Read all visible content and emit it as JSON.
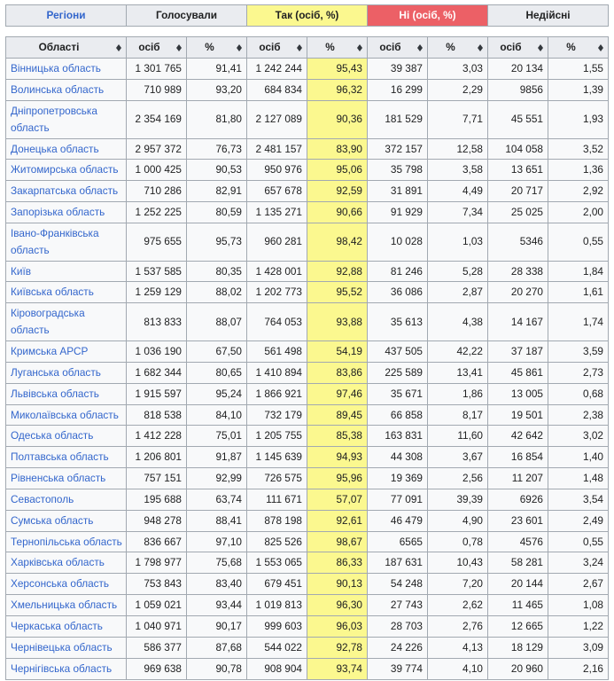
{
  "colors": {
    "header_background": "#eaecf0",
    "row_background": "#f8f9fa",
    "yes_background": "#fbf88f",
    "no_background": "#ec6066",
    "border": "#a2a9b1",
    "link": "#3366cc",
    "text": "#202122"
  },
  "legend": {
    "items": [
      {
        "label": "Регіони",
        "style": "plain",
        "link": true
      },
      {
        "label": "Голосували",
        "style": "plain",
        "link": false
      },
      {
        "label": "Так (осіб, %)",
        "style": "yes",
        "link": false
      },
      {
        "label": "Ні (осіб, %)",
        "style": "no",
        "link": false
      },
      {
        "label": "Недійсні",
        "style": "plain",
        "link": false
      }
    ]
  },
  "table": {
    "columns": [
      {
        "key": "region",
        "label": "Області"
      },
      {
        "key": "voted",
        "label": "осіб"
      },
      {
        "key": "voted_pct",
        "label": "%"
      },
      {
        "key": "yes",
        "label": "осіб"
      },
      {
        "key": "yes_pct",
        "label": "%"
      },
      {
        "key": "no",
        "label": "осіб"
      },
      {
        "key": "no_pct",
        "label": "%"
      },
      {
        "key": "invalid",
        "label": "осіб"
      },
      {
        "key": "invalid_pct",
        "label": "%"
      }
    ],
    "rows": [
      {
        "region": "Вінницька область",
        "voted": "1 301 765",
        "voted_pct": "91,41",
        "yes": "1 242 244",
        "yes_pct": "95,43",
        "no": "39 387",
        "no_pct": "3,03",
        "invalid": "20 134",
        "invalid_pct": "1,55"
      },
      {
        "region": "Волинська область",
        "voted": "710 989",
        "voted_pct": "93,20",
        "yes": "684 834",
        "yes_pct": "96,32",
        "no": "16 299",
        "no_pct": "2,29",
        "invalid": "9856",
        "invalid_pct": "1,39"
      },
      {
        "region": "Дніпропетровська область",
        "voted": "2 354 169",
        "voted_pct": "81,80",
        "yes": "2 127 089",
        "yes_pct": "90,36",
        "no": "181 529",
        "no_pct": "7,71",
        "invalid": "45 551",
        "invalid_pct": "1,93"
      },
      {
        "region": "Донецька область",
        "voted": "2 957 372",
        "voted_pct": "76,73",
        "yes": "2 481 157",
        "yes_pct": "83,90",
        "no": "372 157",
        "no_pct": "12,58",
        "invalid": "104 058",
        "invalid_pct": "3,52"
      },
      {
        "region": "Житомирська область",
        "voted": "1 000 425",
        "voted_pct": "90,53",
        "yes": "950 976",
        "yes_pct": "95,06",
        "no": "35 798",
        "no_pct": "3,58",
        "invalid": "13 651",
        "invalid_pct": "1,36"
      },
      {
        "region": "Закарпатська область",
        "voted": "710 286",
        "voted_pct": "82,91",
        "yes": "657 678",
        "yes_pct": "92,59",
        "no": "31 891",
        "no_pct": "4,49",
        "invalid": "20 717",
        "invalid_pct": "2,92"
      },
      {
        "region": "Запорізька область",
        "voted": "1 252 225",
        "voted_pct": "80,59",
        "yes": "1 135 271",
        "yes_pct": "90,66",
        "no": "91 929",
        "no_pct": "7,34",
        "invalid": "25 025",
        "invalid_pct": "2,00"
      },
      {
        "region": "Івано-Франківська область",
        "voted": "975 655",
        "voted_pct": "95,73",
        "yes": "960 281",
        "yes_pct": "98,42",
        "no": "10 028",
        "no_pct": "1,03",
        "invalid": "5346",
        "invalid_pct": "0,55"
      },
      {
        "region": "Київ",
        "voted": "1 537 585",
        "voted_pct": "80,35",
        "yes": "1 428 001",
        "yes_pct": "92,88",
        "no": "81 246",
        "no_pct": "5,28",
        "invalid": "28 338",
        "invalid_pct": "1,84"
      },
      {
        "region": "Київська область",
        "voted": "1 259 129",
        "voted_pct": "88,02",
        "yes": "1 202 773",
        "yes_pct": "95,52",
        "no": "36 086",
        "no_pct": "2,87",
        "invalid": "20 270",
        "invalid_pct": "1,61"
      },
      {
        "region": "Кіровоградська область",
        "voted": "813 833",
        "voted_pct": "88,07",
        "yes": "764 053",
        "yes_pct": "93,88",
        "no": "35 613",
        "no_pct": "4,38",
        "invalid": "14 167",
        "invalid_pct": "1,74"
      },
      {
        "region": "Кримська АРСР",
        "voted": "1 036 190",
        "voted_pct": "67,50",
        "yes": "561 498",
        "yes_pct": "54,19",
        "no": "437 505",
        "no_pct": "42,22",
        "invalid": "37 187",
        "invalid_pct": "3,59"
      },
      {
        "region": "Луганська область",
        "voted": "1 682 344",
        "voted_pct": "80,65",
        "yes": "1 410 894",
        "yes_pct": "83,86",
        "no": "225 589",
        "no_pct": "13,41",
        "invalid": "45 861",
        "invalid_pct": "2,73"
      },
      {
        "region": "Львівська область",
        "voted": "1 915 597",
        "voted_pct": "95,24",
        "yes": "1 866 921",
        "yes_pct": "97,46",
        "no": "35 671",
        "no_pct": "1,86",
        "invalid": "13 005",
        "invalid_pct": "0,68"
      },
      {
        "region": "Миколаївська область",
        "voted": "818 538",
        "voted_pct": "84,10",
        "yes": "732 179",
        "yes_pct": "89,45",
        "no": "66 858",
        "no_pct": "8,17",
        "invalid": "19 501",
        "invalid_pct": "2,38"
      },
      {
        "region": "Одеська область",
        "voted": "1 412 228",
        "voted_pct": "75,01",
        "yes": "1 205 755",
        "yes_pct": "85,38",
        "no": "163 831",
        "no_pct": "11,60",
        "invalid": "42 642",
        "invalid_pct": "3,02"
      },
      {
        "region": "Полтавська область",
        "voted": "1 206 801",
        "voted_pct": "91,87",
        "yes": "1 145 639",
        "yes_pct": "94,93",
        "no": "44 308",
        "no_pct": "3,67",
        "invalid": "16 854",
        "invalid_pct": "1,40"
      },
      {
        "region": "Рівненська область",
        "voted": "757 151",
        "voted_pct": "92,99",
        "yes": "726 575",
        "yes_pct": "95,96",
        "no": "19 369",
        "no_pct": "2,56",
        "invalid": "11 207",
        "invalid_pct": "1,48"
      },
      {
        "region": "Севастополь",
        "voted": "195 688",
        "voted_pct": "63,74",
        "yes": "111 671",
        "yes_pct": "57,07",
        "no": "77 091",
        "no_pct": "39,39",
        "invalid": "6926",
        "invalid_pct": "3,54"
      },
      {
        "region": "Сумська область",
        "voted": "948 278",
        "voted_pct": "88,41",
        "yes": "878 198",
        "yes_pct": "92,61",
        "no": "46 479",
        "no_pct": "4,90",
        "invalid": "23 601",
        "invalid_pct": "2,49"
      },
      {
        "region": "Тернопільська область",
        "voted": "836 667",
        "voted_pct": "97,10",
        "yes": "825 526",
        "yes_pct": "98,67",
        "no": "6565",
        "no_pct": "0,78",
        "invalid": "4576",
        "invalid_pct": "0,55"
      },
      {
        "region": "Харківська область",
        "voted": "1 798 977",
        "voted_pct": "75,68",
        "yes": "1 553 065",
        "yes_pct": "86,33",
        "no": "187 631",
        "no_pct": "10,43",
        "invalid": "58 281",
        "invalid_pct": "3,24"
      },
      {
        "region": "Херсонська область",
        "voted": "753 843",
        "voted_pct": "83,40",
        "yes": "679 451",
        "yes_pct": "90,13",
        "no": "54 248",
        "no_pct": "7,20",
        "invalid": "20 144",
        "invalid_pct": "2,67"
      },
      {
        "region": "Хмельницька область",
        "voted": "1 059 021",
        "voted_pct": "93,44",
        "yes": "1 019 813",
        "yes_pct": "96,30",
        "no": "27 743",
        "no_pct": "2,62",
        "invalid": "11 465",
        "invalid_pct": "1,08"
      },
      {
        "region": "Черкаська область",
        "voted": "1 040 971",
        "voted_pct": "90,17",
        "yes": "999 603",
        "yes_pct": "96,03",
        "no": "28 703",
        "no_pct": "2,76",
        "invalid": "12 665",
        "invalid_pct": "1,22"
      },
      {
        "region": "Чернівецька область",
        "voted": "586 377",
        "voted_pct": "87,68",
        "yes": "544 022",
        "yes_pct": "92,78",
        "no": "24 226",
        "no_pct": "4,13",
        "invalid": "18 129",
        "invalid_pct": "3,09"
      },
      {
        "region": "Чернігівська область",
        "voted": "969 638",
        "voted_pct": "90,78",
        "yes": "908 904",
        "yes_pct": "93,74",
        "no": "39 774",
        "no_pct": "4,10",
        "invalid": "20 960",
        "invalid_pct": "2,16"
      }
    ]
  }
}
